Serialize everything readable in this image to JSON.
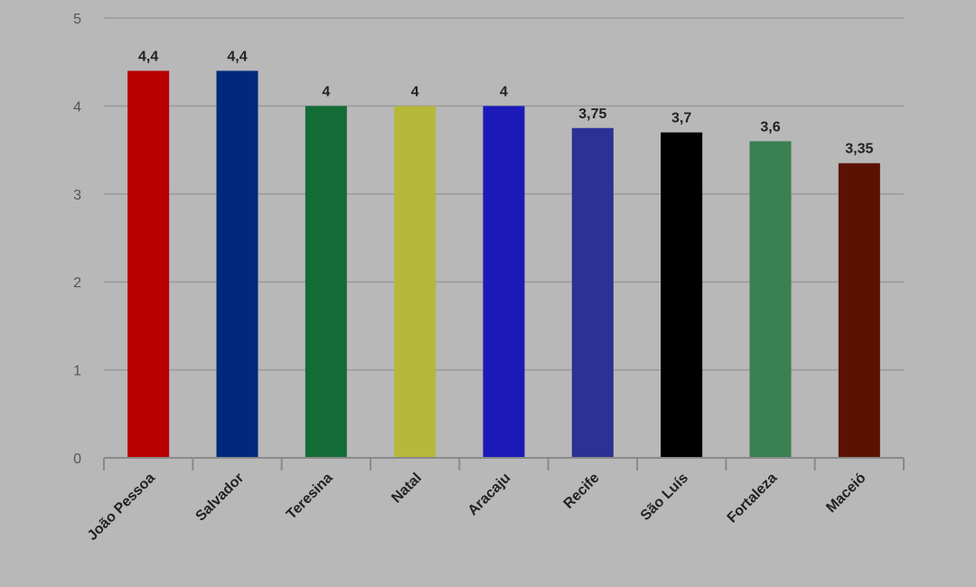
{
  "chart_data": {
    "type": "bar",
    "title": "",
    "xlabel": "",
    "ylabel": "",
    "ylim": [
      0,
      5
    ],
    "yticks": [
      "0",
      "1",
      "2",
      "3",
      "4",
      "5"
    ],
    "grid": true,
    "legend": "none",
    "categories": [
      "João Pessoa",
      "Salvador",
      "Teresina",
      "Natal",
      "Aracaju",
      "Recife",
      "São Luís",
      "Fortaleza",
      "Maceió"
    ],
    "values": [
      4.4,
      4.4,
      4,
      4,
      4,
      3.75,
      3.7,
      3.6,
      3.35
    ],
    "value_labels": [
      "4,4",
      "4,4",
      "4",
      "4",
      "4",
      "3,75",
      "3,7",
      "3,6",
      "3,35"
    ],
    "colors": [
      "#b80000",
      "#00287d",
      "#136b36",
      "#b5b83a",
      "#1c19b9",
      "#2b3195",
      "#000000",
      "#3b8050",
      "#5a1203"
    ],
    "background": "#b8b8b8"
  }
}
